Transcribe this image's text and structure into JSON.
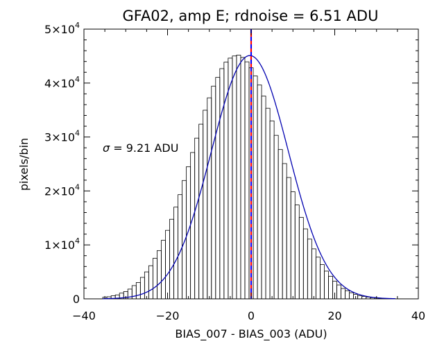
{
  "chart_data": {
    "type": "histogram",
    "title": "GFA02, amp E; rdnoise = 6.51 ADU",
    "xlabel": "BIAS_007 - BIAS_003 (ADU)",
    "ylabel": "pixels/bin",
    "xlim": [
      -40,
      40
    ],
    "ylim": [
      0,
      50000
    ],
    "x_ticks": [
      {
        "value": -40,
        "label": "−40"
      },
      {
        "value": -20,
        "label": "−20"
      },
      {
        "value": 0,
        "label": "0"
      },
      {
        "value": 20,
        "label": "20"
      },
      {
        "value": 40,
        "label": "40"
      }
    ],
    "y_ticks": [
      {
        "value": 0,
        "mantissa": "0",
        "exponent": ""
      },
      {
        "value": 10000,
        "mantissa": "1×10",
        "exponent": "4"
      },
      {
        "value": 20000,
        "mantissa": "2×10",
        "exponent": "4"
      },
      {
        "value": 30000,
        "mantissa": "3×10",
        "exponent": "4"
      },
      {
        "value": 40000,
        "mantissa": "4×10",
        "exponent": "4"
      },
      {
        "value": 50000,
        "mantissa": "5×10",
        "exponent": "4"
      }
    ],
    "bin_width": 1,
    "bins_x": [
      -35,
      -34,
      -33,
      -32,
      -31,
      -30,
      -29,
      -28,
      -27,
      -26,
      -25,
      -24,
      -23,
      -22,
      -21,
      -20,
      -19,
      -18,
      -17,
      -16,
      -15,
      -14,
      -13,
      -12,
      -11,
      -10,
      -9,
      -8,
      -7,
      -6,
      -5,
      -4,
      -3,
      -2,
      -1,
      0,
      1,
      2,
      3,
      4,
      5,
      6,
      7,
      8,
      9,
      10,
      11,
      12,
      13,
      14,
      15,
      16,
      17,
      18,
      19,
      20,
      21,
      22,
      23,
      24,
      25,
      26,
      27,
      28,
      29,
      30,
      31,
      32,
      33,
      34
    ],
    "counts": [
      302,
      386,
      572,
      730,
      1061,
      1358,
      1808,
      2455,
      3030,
      3981,
      4997,
      6141,
      7519,
      8948,
      10850,
      12702,
      14753,
      17005,
      19317,
      21939,
      24501,
      27126,
      29793,
      32380,
      34965,
      37262,
      39431,
      41051,
      42676,
      43876,
      44619,
      45022,
      45190,
      44759,
      43937,
      42835,
      41320,
      39646,
      37592,
      35329,
      32988,
      30313,
      27678,
      25075,
      22495,
      19853,
      17402,
      15104,
      12973,
      11076,
      9269,
      7730,
      6347,
      5145,
      4184,
      3262,
      2571,
      1920,
      1509,
      1131,
      843,
      601,
      451,
      324,
      226,
      156,
      106,
      71,
      46,
      30
    ],
    "fit": {
      "type": "gaussian",
      "amplitude": 45100,
      "mean": -0.3,
      "sigma": 9.21
    },
    "fit_color": "#0000b0",
    "vline_x": 0,
    "vline_color": "#ff0000",
    "vline_dash_color": "#0000ff",
    "annotation": {
      "symbol": "σ",
      "text": " = 9.21 ADU"
    }
  }
}
